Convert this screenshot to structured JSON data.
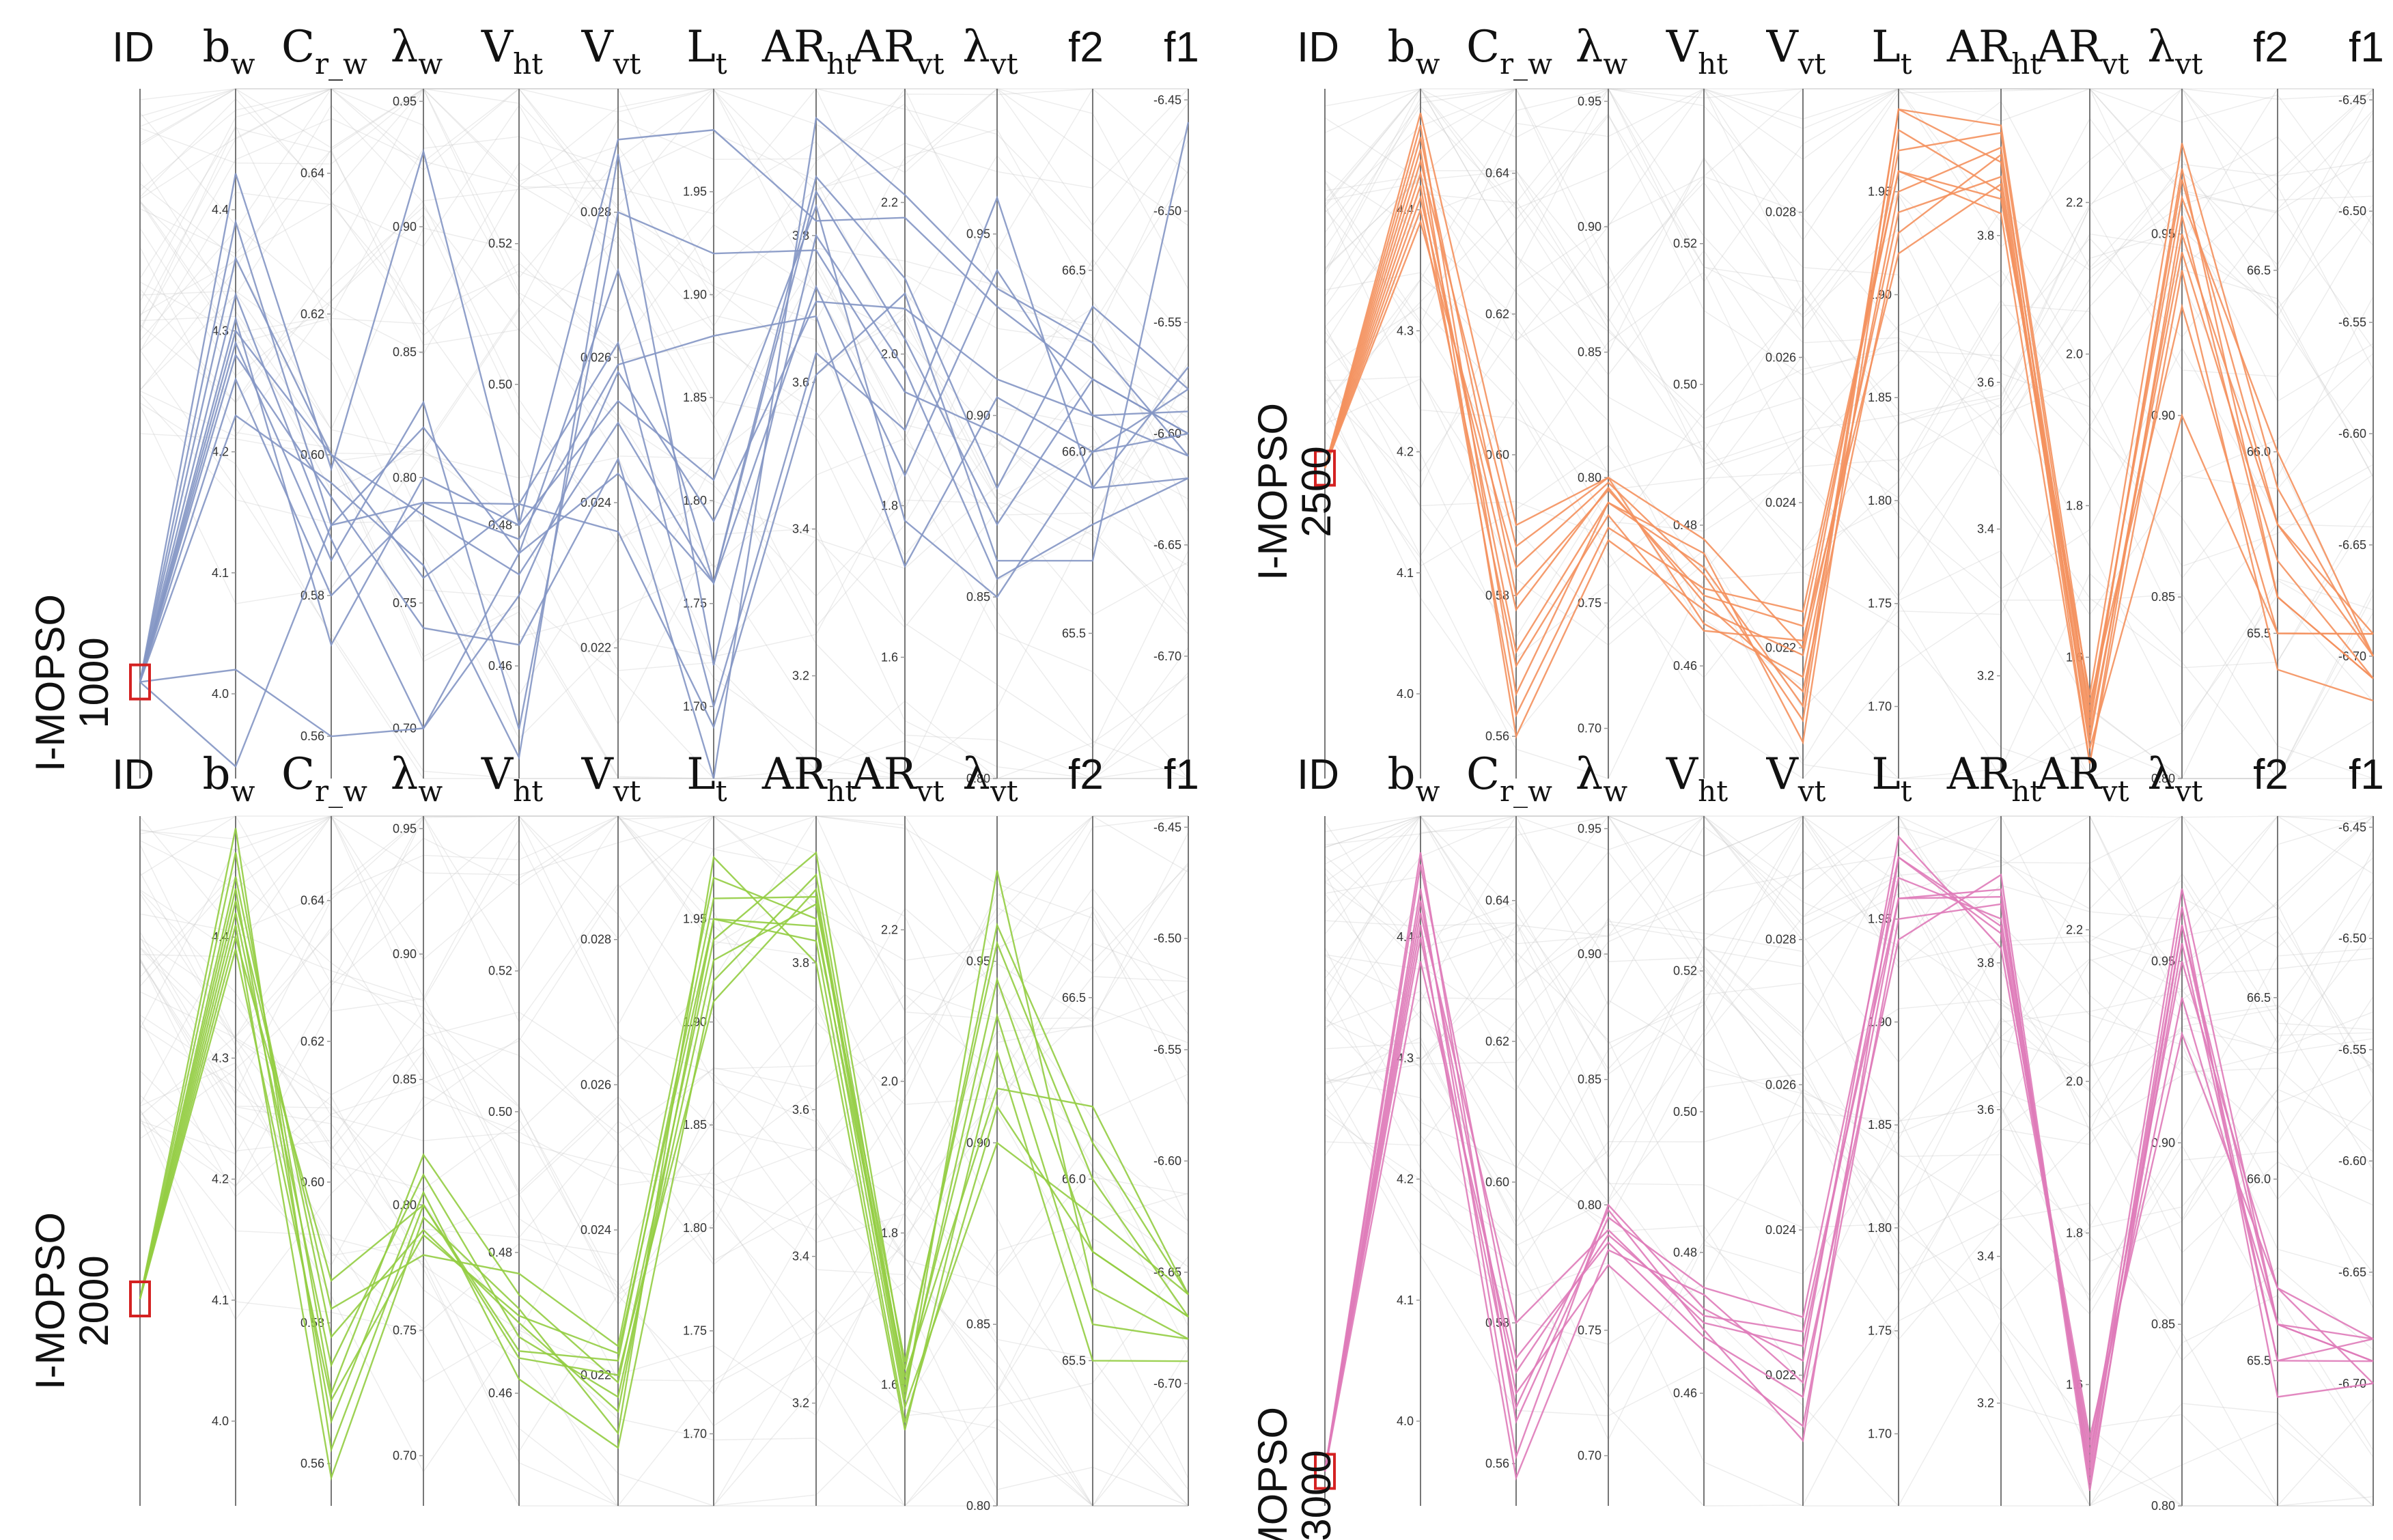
{
  "chart_data": {
    "type": "parallel_coordinates",
    "title": "",
    "axes": [
      {
        "key": "ID",
        "label": "ID",
        "sub": "",
        "ticks": []
      },
      {
        "key": "bw",
        "label": "b",
        "sub": "w",
        "range": [
          3.93,
          4.5
        ],
        "ticks": [
          "4.4",
          "4.3",
          "4.2",
          "4.1",
          "4.0"
        ]
      },
      {
        "key": "crw",
        "label": "C",
        "sub": "r_w",
        "range": [
          0.554,
          0.652
        ],
        "ticks": [
          "0.64",
          "0.62",
          "0.60",
          "0.58",
          "0.56"
        ]
      },
      {
        "key": "lw",
        "label": "λ",
        "sub": "w",
        "range": [
          0.68,
          0.955
        ],
        "ticks": [
          "0.95",
          "0.90",
          "0.85",
          "0.80",
          "0.75",
          "0.70"
        ]
      },
      {
        "key": "vht",
        "label": "V",
        "sub": "ht",
        "range": [
          0.444,
          0.542
        ],
        "ticks": [
          "0.52",
          "0.50",
          "0.48",
          "0.46"
        ]
      },
      {
        "key": "vvt",
        "label": "V",
        "sub": "vt",
        "range": [
          0.0202,
          0.0297
        ],
        "ticks": [
          "0.028",
          "0.026",
          "0.024",
          "0.022"
        ]
      },
      {
        "key": "lt",
        "label": "L",
        "sub": "t",
        "range": [
          1.665,
          2.0
        ],
        "ticks": [
          "1.95",
          "1.90",
          "1.85",
          "1.80",
          "1.75",
          "1.70"
        ]
      },
      {
        "key": "arht",
        "label": "AR",
        "sub": "ht",
        "range": [
          3.06,
          4.0
        ],
        "ticks": [
          "3.8",
          "3.6",
          "3.4",
          "3.2"
        ]
      },
      {
        "key": "arvt",
        "label": "AR",
        "sub": "vt",
        "range": [
          1.44,
          2.35
        ],
        "ticks": [
          "2.2",
          "2.0",
          "1.8",
          "1.6"
        ]
      },
      {
        "key": "lvt",
        "label": "λ",
        "sub": "vt",
        "range": [
          0.8,
          0.99
        ],
        "ticks": [
          "0.95",
          "0.90",
          "0.85",
          "0.80"
        ]
      },
      {
        "key": "f2",
        "label": "f2",
        "sub": "",
        "range": [
          65.1,
          67.0
        ],
        "ticks": [
          "66.5",
          "66.0",
          "65.5"
        ]
      },
      {
        "key": "f1",
        "label": "f1",
        "sub": "",
        "range": [
          -6.755,
          -6.445
        ],
        "ticks": [
          "-6.45",
          "-6.50",
          "-6.55",
          "-6.60",
          "-6.65",
          "-6.70"
        ]
      }
    ],
    "panels": [
      {
        "name": "I-MOPSO",
        "iteration": "1000",
        "color": "#8496c4",
        "id_value": 0.14,
        "series": [
          [
            0.14,
            4.43,
            0.598,
            0.93,
            0.48,
            0.029,
            1.98,
            3.82,
            2.18,
            0.93,
            66.2,
            -6.6
          ],
          [
            0.14,
            4.39,
            0.59,
            0.82,
            0.476,
            0.0272,
            1.76,
            3.88,
            2.1,
            0.88,
            66.4,
            -6.58
          ],
          [
            0.14,
            4.36,
            0.6,
            0.76,
            0.483,
            0.0262,
            1.7,
            3.64,
            1.9,
            0.96,
            65.9,
            -6.62
          ],
          [
            0.14,
            4.33,
            0.588,
            0.7,
            0.47,
            0.0258,
            1.79,
            3.71,
            2.06,
            0.91,
            66.1,
            -6.61
          ],
          [
            0.14,
            4.31,
            0.573,
            0.8,
            0.48,
            0.0254,
            1.81,
            3.84,
            1.78,
            0.85,
            66.0,
            -6.58
          ],
          [
            0.14,
            4.3,
            0.6,
            0.785,
            0.473,
            0.0251,
            1.76,
            3.86,
            2.02,
            0.87,
            66.2,
            -6.6
          ],
          [
            0.14,
            4.29,
            0.585,
            0.83,
            0.451,
            0.028,
            1.92,
            3.78,
            1.95,
            0.895,
            65.9,
            -6.57
          ],
          [
            0.14,
            4.28,
            0.594,
            0.74,
            0.463,
            0.0246,
            1.64,
            3.96,
            2.21,
            0.935,
            66.3,
            -6.61
          ],
          [
            0.14,
            4.26,
            0.58,
            0.79,
            0.478,
            0.0259,
            1.88,
            3.69,
            1.72,
            0.905,
            66.0,
            -6.6
          ],
          [
            0.14,
            4.23,
            0.596,
            0.765,
            0.447,
            0.0288,
            1.72,
            3.8,
            1.98,
            0.855,
            65.8,
            -6.62
          ],
          [
            0.14,
            4.02,
            0.56,
            0.7,
            0.476,
            0.0244,
            1.76,
            3.73,
            1.84,
            0.94,
            66.1,
            -6.59
          ],
          [
            0.14,
            3.94,
            0.59,
            0.79,
            0.483,
            0.0236,
            1.69,
            3.61,
            2.08,
            0.86,
            65.7,
            -6.46
          ]
        ]
      },
      {
        "name": "I-MOPSO",
        "iteration": "2500",
        "color": "#f4915e",
        "id_value": 0.45,
        "series": [
          [
            0.45,
            4.48,
            0.59,
            0.8,
            0.478,
            0.022,
            1.97,
            3.94,
            1.52,
            0.965,
            65.8,
            -6.69
          ],
          [
            0.45,
            4.47,
            0.566,
            0.79,
            0.474,
            0.0212,
            1.99,
            3.9,
            1.46,
            0.955,
            65.6,
            -6.71
          ],
          [
            0.45,
            4.46,
            0.58,
            0.795,
            0.47,
            0.0223,
            1.96,
            3.85,
            1.55,
            0.975,
            65.9,
            -6.7
          ],
          [
            0.45,
            4.45,
            0.56,
            0.775,
            0.468,
            0.0219,
            1.94,
            3.88,
            1.5,
            0.945,
            65.7,
            -6.71
          ],
          [
            0.45,
            4.44,
            0.587,
            0.8,
            0.466,
            0.0216,
            1.95,
            3.92,
            1.48,
            0.9,
            65.5,
            -6.69
          ],
          [
            0.45,
            4.43,
            0.572,
            0.79,
            0.476,
            0.0207,
            1.98,
            3.86,
            1.53,
            0.96,
            66.0,
            -6.7
          ],
          [
            0.45,
            4.42,
            0.563,
            0.78,
            0.471,
            0.0225,
            1.96,
            3.83,
            1.46,
            0.94,
            65.4,
            -6.72
          ],
          [
            0.45,
            4.41,
            0.578,
            0.796,
            0.469,
            0.0214,
            1.93,
            3.91,
            1.51,
            0.968,
            65.6,
            -6.71
          ],
          [
            0.45,
            4.4,
            0.57,
            0.785,
            0.465,
            0.0221,
            1.92,
            3.87,
            1.49,
            0.95,
            65.8,
            -6.7
          ],
          [
            0.45,
            4.39,
            0.584,
            0.798,
            0.473,
            0.021,
            1.99,
            3.95,
            1.54,
            0.93,
            65.5,
            -6.69
          ]
        ]
      },
      {
        "name": "I-MOPSO",
        "iteration": "2000",
        "color": "#94cd43",
        "id_value": 0.3,
        "series": [
          [
            0.3,
            4.49,
            0.562,
            0.8,
            0.466,
            0.0222,
            1.96,
            3.89,
            1.58,
            0.975,
            65.7,
            -6.68
          ],
          [
            0.3,
            4.47,
            0.57,
            0.82,
            0.474,
            0.0219,
            1.94,
            3.95,
            1.62,
            0.96,
            66.1,
            -6.66
          ],
          [
            0.3,
            4.45,
            0.578,
            0.79,
            0.47,
            0.0215,
            1.95,
            3.83,
            1.55,
            0.91,
            65.8,
            -6.67
          ],
          [
            0.3,
            4.44,
            0.566,
            0.805,
            0.462,
            0.021,
            1.92,
            3.92,
            1.6,
            0.935,
            65.6,
            -6.68
          ],
          [
            0.3,
            4.43,
            0.582,
            0.78,
            0.477,
            0.0224,
            1.97,
            3.86,
            1.57,
            0.9,
            65.9,
            -6.66
          ],
          [
            0.3,
            4.42,
            0.574,
            0.812,
            0.468,
            0.0217,
            1.93,
            3.88,
            1.63,
            0.955,
            66.0,
            -6.67
          ],
          [
            0.3,
            4.41,
            0.558,
            0.795,
            0.472,
            0.0212,
            1.98,
            3.8,
            1.54,
            0.925,
            65.5,
            -6.69
          ],
          [
            0.3,
            4.4,
            0.586,
            0.8,
            0.465,
            0.022,
            1.91,
            3.9,
            1.59,
            0.945,
            65.8,
            -6.67
          ],
          [
            0.3,
            4.39,
            0.569,
            0.788,
            0.471,
            0.0223,
            1.95,
            3.85,
            1.61,
            0.915,
            66.2,
            -6.66
          ]
        ]
      },
      {
        "name": "I-MOPSO",
        "iteration": "3000",
        "color": "#df7bb9",
        "id_value": 0.05,
        "series": [
          [
            0.05,
            4.47,
            0.566,
            0.795,
            0.475,
            0.0228,
            1.98,
            3.85,
            1.5,
            0.97,
            65.6,
            -6.68
          ],
          [
            0.05,
            4.46,
            0.575,
            0.785,
            0.468,
            0.0217,
            1.96,
            3.9,
            1.46,
            0.96,
            65.5,
            -6.69
          ],
          [
            0.05,
            4.44,
            0.561,
            0.8,
            0.472,
            0.0222,
            1.99,
            3.82,
            1.52,
            0.95,
            65.7,
            -6.68
          ],
          [
            0.05,
            4.43,
            0.57,
            0.776,
            0.466,
            0.0213,
            1.95,
            3.88,
            1.48,
            0.965,
            65.4,
            -6.7
          ],
          [
            0.05,
            4.42,
            0.58,
            0.79,
            0.47,
            0.0224,
            1.97,
            3.86,
            1.51,
            0.94,
            65.6,
            -6.69
          ],
          [
            0.05,
            4.41,
            0.558,
            0.782,
            0.474,
            0.0219,
            1.94,
            3.92,
            1.47,
            0.955,
            65.5,
            -6.68
          ],
          [
            0.05,
            4.4,
            0.568,
            0.798,
            0.469,
            0.0211,
            1.98,
            3.84,
            1.53,
            0.93,
            65.7,
            -6.7
          ],
          [
            0.05,
            4.38,
            0.573,
            0.788,
            0.471,
            0.0226,
            1.96,
            3.89,
            1.49,
            0.96,
            65.6,
            -6.69
          ]
        ]
      }
    ],
    "background_color": "#c8c8c8",
    "highlight_marker_color": "#d42222"
  }
}
